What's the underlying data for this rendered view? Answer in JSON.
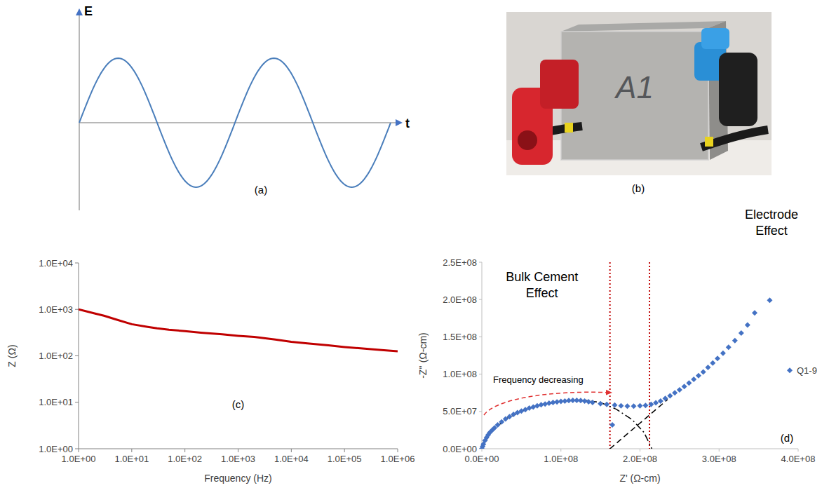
{
  "panels": {
    "a": {
      "y_label": "E",
      "x_label": "t",
      "label": "(a)"
    },
    "b": {
      "specimen_label": "A1",
      "label": "(b)"
    }
  },
  "chart_data": [
    {
      "type": "line",
      "panel_label": "(c)",
      "x_label": "Frequency (Hz)",
      "y_label": "Z (Ω)",
      "log": true,
      "grid": false,
      "color": "#c00000",
      "x": [
        1,
        2,
        3,
        5,
        10,
        20,
        30,
        50,
        100,
        200,
        500,
        1000,
        2000,
        5000,
        10000,
        20000,
        50000,
        100000,
        200000,
        500000,
        1000000
      ],
      "values": [
        1000,
        820,
        730,
        610,
        480,
        420,
        390,
        365,
        340,
        315,
        290,
        270,
        255,
        225,
        200,
        185,
        168,
        155,
        145,
        133,
        125
      ],
      "xlim": [
        1,
        1000000
      ],
      "xticks": [
        {
          "value": 1,
          "label": "1.0E+00"
        },
        {
          "value": 10,
          "label": "1.0E+01"
        },
        {
          "value": 100,
          "label": "1.0E+02"
        },
        {
          "value": 1000,
          "label": "1.0E+03"
        },
        {
          "value": 10000,
          "label": "1.0E+04"
        },
        {
          "value": 100000,
          "label": "1.0E+05"
        },
        {
          "value": 1000000,
          "label": "1.0E+06"
        }
      ],
      "ylim": [
        1,
        10000
      ],
      "yticks": [
        {
          "value": 1,
          "label": "1.0E+00"
        },
        {
          "value": 10,
          "label": "1.0E+01"
        },
        {
          "value": 100,
          "label": "1.0E+02"
        },
        {
          "value": 1000,
          "label": "1.0E+03"
        },
        {
          "value": 10000,
          "label": "1.0E+04"
        }
      ]
    },
    {
      "type": "scatter",
      "panel_label": "(d)",
      "x_label": "Z' (Ω-cm)",
      "y_label": "-Z'' (Ω-cm)",
      "grid": false,
      "legend": "right",
      "annotations": [
        "Bulk Cement Effect",
        "Electrode Effect",
        "Frequency decreasing"
      ],
      "series": [
        {
          "name": "Q1-9",
          "color": "#4472c4",
          "marker": "diamond",
          "x": [
            0,
            1000000,
            2000000,
            4000000,
            6000000,
            8000000,
            10000000,
            13000000,
            16000000,
            20000000,
            25000000,
            30000000,
            35000000,
            40000000,
            45000000,
            50000000,
            55000000,
            60000000,
            65000000,
            70000000,
            75000000,
            80000000,
            85000000,
            90000000,
            95000000,
            100000000,
            105000000,
            110000000,
            115000000,
            120000000,
            125000000,
            130000000,
            135000000,
            140000000,
            150000000,
            158000000,
            165000000,
            168000000,
            176000000,
            184000000,
            192000000,
            200000000,
            207000000,
            214000000,
            220000000,
            226000000,
            232000000,
            238000000,
            244000000,
            250000000,
            256000000,
            262000000,
            268000000,
            274000000,
            280000000,
            286000000,
            292000000,
            298000000,
            305000000,
            312000000,
            320000000,
            328000000,
            336000000,
            345000000,
            364000000
          ],
          "values": [
            0,
            3000000,
            6000000,
            11000000,
            15000000,
            18500000,
            21500000,
            25000000,
            28000000,
            32000000,
            36000000,
            40000000,
            43000000,
            46000000,
            48500000,
            50500000,
            52500000,
            54500000,
            56000000,
            57500000,
            59000000,
            60000000,
            61000000,
            62000000,
            62800000,
            63500000,
            64000000,
            64500000,
            64800000,
            64800000,
            64500000,
            64000000,
            63000000,
            62000000,
            60500000,
            59500000,
            32000000,
            58500000,
            57500000,
            57000000,
            57000000,
            57500000,
            58000000,
            59500000,
            61500000,
            64000000,
            67500000,
            71000000,
            75000000,
            79000000,
            83500000,
            88000000,
            93000000,
            98000000,
            103000000,
            109000000,
            115000000,
            121000000,
            128000000,
            136000000,
            145000000,
            155000000,
            166000000,
            182000000,
            199000000
          ]
        }
      ],
      "fit_lines": [
        {
          "line_style": "dashed",
          "color": "#000000",
          "x": [
            0,
            10000000,
            30000000,
            60000000,
            100000000,
            130000000,
            150000000
          ],
          "values": [
            0,
            20000000,
            40000000,
            55000000,
            64000000,
            65000000,
            62000000
          ]
        },
        {
          "line_style": "dashdot",
          "color": "#000000",
          "x": [
            150000000,
            170000000,
            190000000,
            205000000,
            215000000
          ],
          "values": [
            62000000,
            53000000,
            39000000,
            22000000,
            0
          ]
        },
        {
          "line_style": "dashed",
          "color": "#000000",
          "x": [
            162000000,
            235000000
          ],
          "values": [
            0,
            66000000
          ]
        }
      ],
      "vlines": [
        162000000,
        212000000
      ],
      "xlim": [
        0,
        400000000
      ],
      "xticks": [
        {
          "value": 0,
          "label": "0.0E+00"
        },
        {
          "value": 100000000,
          "label": "1.0E+08"
        },
        {
          "value": 200000000,
          "label": "2.0E+08"
        },
        {
          "value": 300000000,
          "label": "3.0E+08"
        },
        {
          "value": 400000000,
          "label": "4.0E+08"
        }
      ],
      "ylim": [
        0,
        250000000
      ],
      "yticks": [
        {
          "value": 0,
          "label": "0.0E+00"
        },
        {
          "value": 50000000,
          "label": "5.0E+07"
        },
        {
          "value": 100000000,
          "label": "1.0E+08"
        },
        {
          "value": 150000000,
          "label": "1.5E+08"
        },
        {
          "value": 200000000,
          "label": "2.0E+08"
        },
        {
          "value": 250000000,
          "label": "2.5E+08"
        }
      ]
    }
  ]
}
